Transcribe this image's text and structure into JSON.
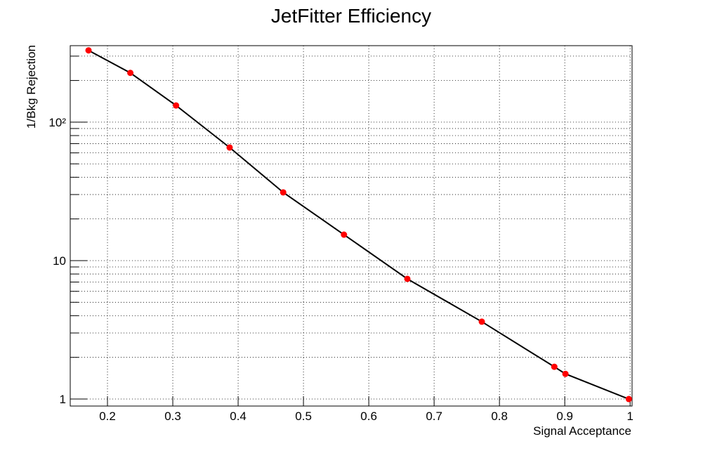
{
  "chart_data": {
    "type": "line",
    "title": "JetFitter Efficiency",
    "xlabel": "Signal Acceptance",
    "ylabel": "1/Bkg Rejection",
    "x": [
      0.171,
      0.235,
      0.305,
      0.387,
      0.469,
      0.562,
      0.659,
      0.773,
      0.884,
      0.901,
      0.998
    ],
    "series": [
      {
        "values": [
          330,
          227,
          132,
          65.6,
          31.1,
          15.4,
          7.38,
          3.62,
          1.71,
          1.52,
          1.0
        ],
        "color": "#ff0000",
        "line_color": "#000000"
      }
    ],
    "xlim": [
      0.143,
      1.003
    ],
    "xticks": [
      0.2,
      0.3,
      0.4,
      0.5,
      0.6,
      0.7,
      0.8,
      0.9,
      1
    ],
    "ylim": [
      0.89,
      357
    ],
    "ylog": true,
    "yticks": [
      1,
      10,
      {
        "value": 100,
        "label": "10²"
      }
    ],
    "yminorticks": [
      2,
      3,
      4,
      5,
      6,
      7,
      8,
      9,
      20,
      30,
      40,
      50,
      60,
      70,
      80,
      90,
      200,
      300
    ],
    "grid": true
  }
}
